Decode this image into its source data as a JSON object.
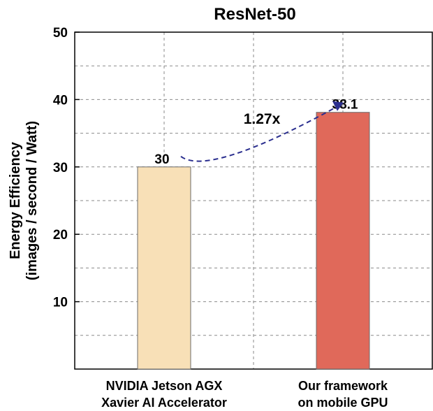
{
  "chart_data": {
    "type": "bar",
    "title": "ResNet-50",
    "ylabel_line1": "Energy Efficiency",
    "ylabel_line2": "(images / second / Watt)",
    "xlabel": "",
    "ylim": [
      0,
      50
    ],
    "yticks": [
      10,
      20,
      30,
      40,
      50
    ],
    "grid": true,
    "categories": [
      {
        "line1": "NVIDIA Jetson AGX",
        "line2": "Xavier AI Accelerator"
      },
      {
        "line1": "Our framework",
        "line2": "on mobile GPU"
      }
    ],
    "values": [
      30,
      38.1
    ],
    "value_labels": [
      "30",
      "38.1"
    ],
    "colors": [
      "#f8e0b7",
      "#e0695a"
    ],
    "annotation": {
      "text": "1.27x",
      "color": "#e0312a",
      "arrow_color": "#2b2f8f"
    }
  }
}
